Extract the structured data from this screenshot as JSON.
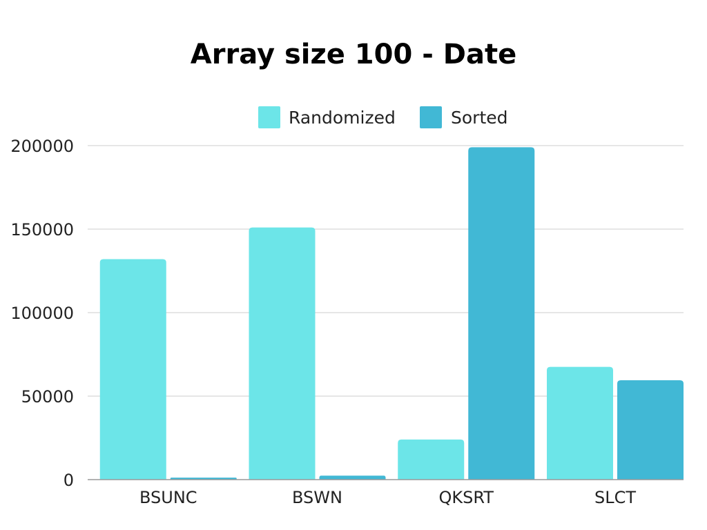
{
  "chart_data": {
    "type": "bar",
    "title": "Array size 100 - Date",
    "xlabel": "",
    "ylabel": "",
    "categories": [
      "BSUNC",
      "BSWN",
      "QKSRT",
      "SLCT"
    ],
    "series": [
      {
        "name": "Randomized",
        "color": "#6ce5e8",
        "values": [
          132000,
          151000,
          24000,
          67500
        ]
      },
      {
        "name": "Sorted",
        "color": "#41b8d5",
        "values": [
          1200,
          2400,
          199000,
          59500
        ]
      }
    ],
    "ylim": [
      0,
      200000
    ],
    "yticks": [
      0,
      50000,
      100000,
      150000,
      200000
    ],
    "ytick_labels": [
      "0",
      "50000",
      "100000",
      "150000",
      "200000"
    ],
    "grid": true,
    "legend_position": "top-center"
  }
}
